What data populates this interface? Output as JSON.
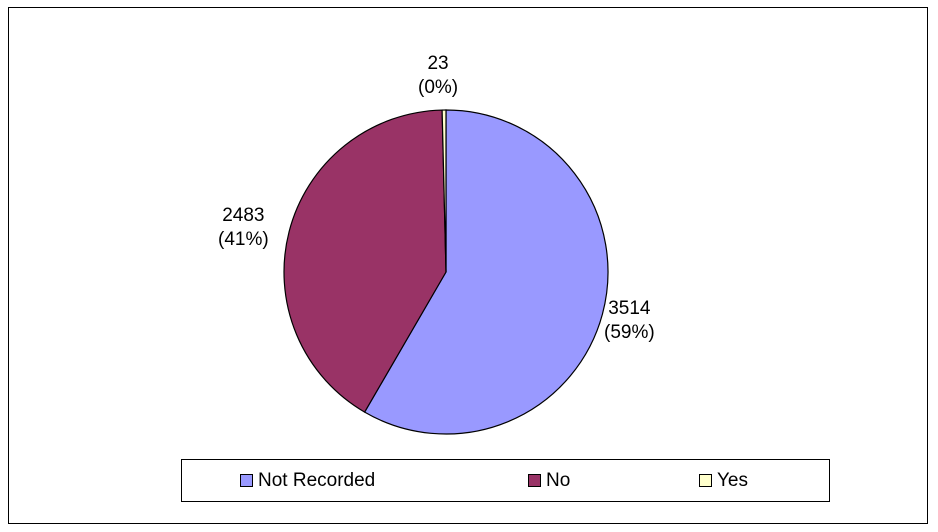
{
  "chart_data": {
    "type": "pie",
    "title": "",
    "slices": [
      {
        "name": "Not Recorded",
        "value": 3514,
        "percent_label": "(59%)",
        "value_label": "3514",
        "color": "#9999ff"
      },
      {
        "name": "No",
        "value": 2483,
        "percent_label": "(41%)",
        "value_label": "2483",
        "color": "#993366"
      },
      {
        "name": "Yes",
        "value": 23,
        "percent_label": "(0%)",
        "value_label": "23",
        "color": "#ffffcc"
      }
    ],
    "legend_position": "bottom"
  }
}
